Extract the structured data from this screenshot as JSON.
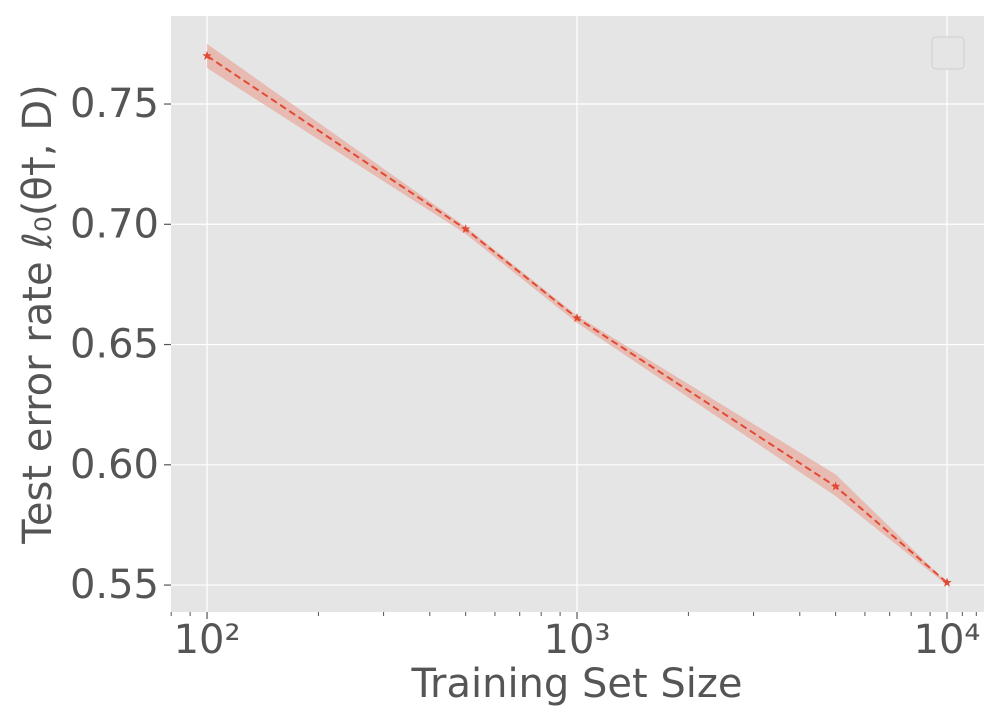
{
  "chart_data": {
    "type": "line",
    "xlabel": "Training Set Size",
    "ylabel": "Test error rate ℓ₀(θ†, D)",
    "x": [
      100,
      500,
      1000,
      5000,
      10000
    ],
    "series": [
      {
        "color": "#e24a33",
        "band_color": "#e8a99c",
        "values": [
          0.77,
          0.698,
          0.661,
          0.591,
          0.551
        ],
        "lower": [
          0.765,
          0.696,
          0.659,
          0.587,
          0.55
        ],
        "upper": [
          0.775,
          0.699,
          0.662,
          0.596,
          0.551
        ]
      }
    ],
    "xscale": "log",
    "xlim": [
      79.9,
      12589
    ],
    "ylim": [
      0.5388,
      0.7866
    ],
    "xticks": [
      {
        "value": 100,
        "label": "10²"
      },
      {
        "value": 1000,
        "label": "10³"
      },
      {
        "value": 10000,
        "label": "10⁴"
      }
    ],
    "xminorticks": [
      80,
      90,
      200,
      300,
      400,
      500,
      600,
      700,
      800,
      900,
      2000,
      3000,
      4000,
      5000,
      6000,
      7000,
      8000,
      9000,
      11000,
      12000
    ],
    "yticks": [
      0.55,
      {
        "value": 0.6,
        "label": "0.60"
      },
      0.65,
      {
        "value": 0.7,
        "label": "0.70"
      },
      0.75
    ],
    "grid": true,
    "legend": "upper right"
  }
}
